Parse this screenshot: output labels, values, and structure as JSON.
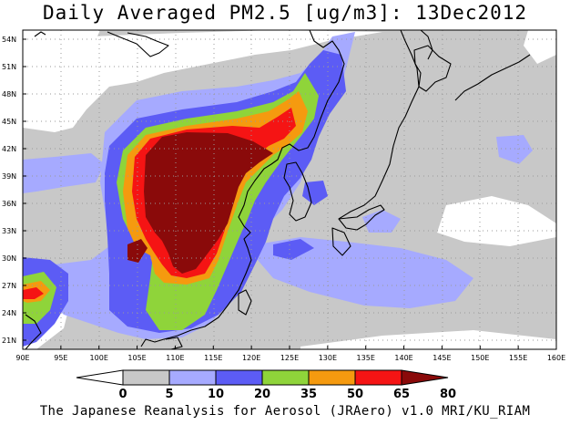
{
  "title": "Daily Averaged PM2.5 [ug/m3]: 13Dec2012",
  "footer": "The Japanese Reanalysis for Aerosol (JRAero) v1.0 MRI/KU_RIAM",
  "map": {
    "variable": "PM2.5",
    "units": "ug/m3",
    "date": "13Dec2012",
    "lon_range": [
      90,
      160
    ],
    "lat_range": [
      20,
      55
    ],
    "lon_ticks": [
      "90E",
      "95E",
      "100E",
      "105E",
      "110E",
      "115E",
      "120E",
      "125E",
      "130E",
      "135E",
      "140E",
      "145E",
      "150E",
      "155E",
      "160E"
    ],
    "lat_ticks": [
      "54N",
      "51N",
      "48N",
      "45N",
      "42N",
      "39N",
      "36N",
      "33N",
      "30N",
      "27N",
      "24N",
      "21N"
    ],
    "grid": "dotted"
  },
  "colorbar": {
    "levels": [
      "0",
      "5",
      "10",
      "20",
      "35",
      "50",
      "65",
      "80"
    ],
    "colors": [
      "#ffffff",
      "#c8c8c8",
      "#a6aaff",
      "#5c5cf5",
      "#8fd43a",
      "#f59a0f",
      "#f51414",
      "#8a0a0a"
    ]
  }
}
